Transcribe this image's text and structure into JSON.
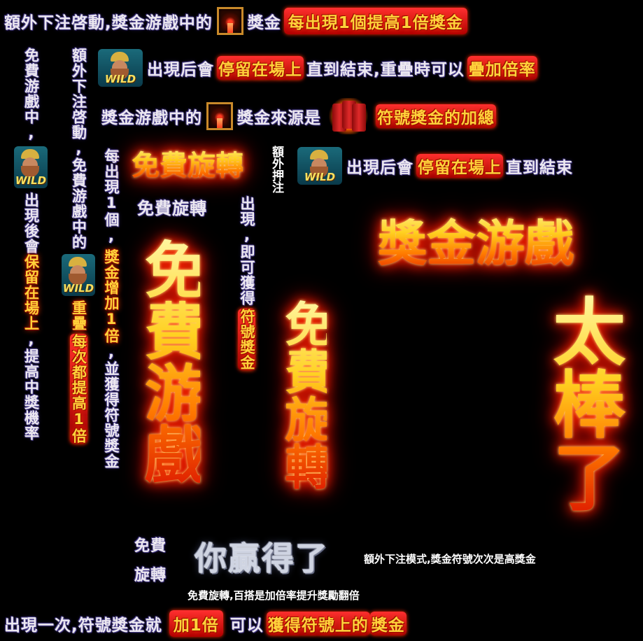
{
  "line1": {
    "a": "額外下注啓動,獎金游戲中的",
    "b": "獎金",
    "c": "每出現1個提高1倍獎金"
  },
  "line2": {
    "wild_label": "WILD",
    "a": "出現后會",
    "b": "停留在場上",
    "c": "直到結束,重疊時",
    "d": "可以",
    "e": "疊加倍率"
  },
  "line3": {
    "a": "獎金游戲中的",
    "b": "獎金來源是",
    "c": "符號獎金的加總"
  },
  "line4": {
    "wild_label": "WILD",
    "a": "出現后會",
    "b": "停留在場上",
    "c": "直到結束"
  },
  "col_left": {
    "a": "免費游戲中,",
    "wild_label": "WILD",
    "b": "出現後會",
    "c": "保留在場上",
    "d": ",提高中獎機率"
  },
  "col_left2": {
    "a": "額外下注啓動,免費游戲中的",
    "wild_label": "WILD",
    "b": "重疊",
    "c": "每次都提高1倍"
  },
  "col_mid": {
    "a": "每出現1個,",
    "b": "獎金增加1倍",
    "c": ",並獲得符號獎金"
  },
  "spin_logo": "免費旋轉",
  "spin_small": "免費旋轉",
  "col_extra": {
    "a": "額外押注"
  },
  "col_appear": {
    "a": "出現,即可獲得",
    "b": "符號獎金"
  },
  "big_free_game": "免費游戲",
  "big_free_spin": "免費旋轉",
  "big_bonus_game": "獎金游戲",
  "big_great": "太棒了",
  "win_left": [
    "免費",
    "旋轉"
  ],
  "win_title": "你贏得了",
  "small1": "額外下注模式,獎金符號次次是高獎金",
  "small2": "免費旋轉,百搭是加倍率提升獎勵翻倍",
  "bottom": {
    "a": "出現一次,符號獎金就",
    "b": "加1倍",
    "c": "可以",
    "d": "獲得符號上的",
    "e": "獎金"
  }
}
